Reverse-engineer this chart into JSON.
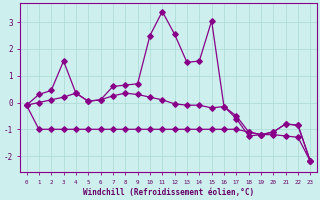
{
  "xlabel": "Windchill (Refroidissement éolien,°C)",
  "bg_color": "#cdf0ee",
  "grid_color": "#b0ddd8",
  "line_color": "#880088",
  "x": [
    0,
    1,
    2,
    3,
    4,
    5,
    6,
    7,
    8,
    9,
    10,
    11,
    12,
    13,
    14,
    15,
    16,
    17,
    18,
    19,
    20,
    21,
    22,
    23
  ],
  "s1": [
    -0.1,
    0.3,
    0.45,
    1.55,
    0.35,
    0.05,
    0.1,
    0.6,
    0.65,
    0.7,
    2.5,
    3.4,
    2.55,
    1.5,
    1.55,
    3.05,
    -0.15,
    -0.6,
    -1.25,
    -1.2,
    -1.1,
    -0.8,
    -0.85,
    -2.2
  ],
  "s2": [
    -0.1,
    -1.0,
    -1.0,
    -1.0,
    -1.0,
    -1.0,
    -1.0,
    -1.0,
    -1.0,
    -1.0,
    -1.0,
    -1.0,
    -1.0,
    -1.0,
    -1.0,
    -1.0,
    -1.0,
    -1.0,
    -1.1,
    -1.2,
    -1.2,
    -1.25,
    -1.3,
    -2.2
  ],
  "s3": [
    -0.1,
    0.0,
    0.1,
    0.2,
    0.35,
    0.05,
    0.1,
    0.25,
    0.35,
    0.3,
    0.2,
    0.1,
    -0.05,
    -0.1,
    -0.1,
    -0.2,
    -0.15,
    -0.5,
    -1.1,
    -1.2,
    -1.1,
    -0.8,
    -0.85,
    -2.2
  ],
  "ylim": [
    -2.6,
    3.7
  ],
  "yticks": [
    -2,
    -1,
    0,
    1,
    2,
    3
  ],
  "xlim": [
    -0.5,
    23.5
  ]
}
